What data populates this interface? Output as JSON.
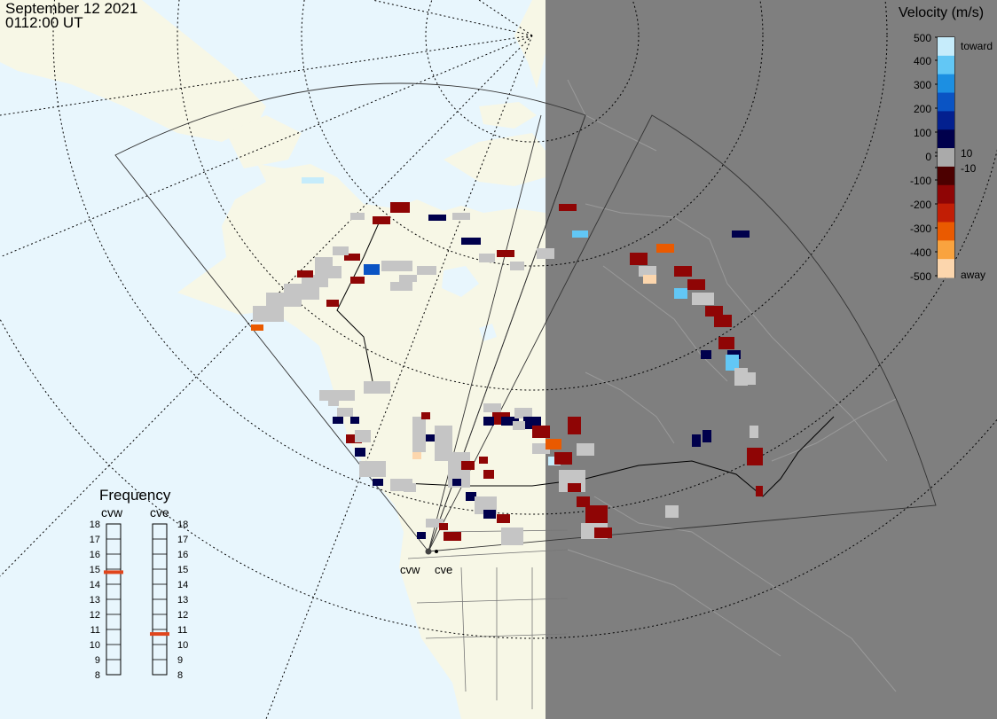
{
  "header": {
    "date": "September 12 2021",
    "time": "0112:00 UT"
  },
  "colorbar": {
    "title": "Velocity (m/s)",
    "ticks": [
      "500",
      "400",
      "300",
      "200",
      "100",
      "10",
      "0",
      "-10",
      "-100",
      "-200",
      "-300",
      "-400",
      "-500"
    ],
    "toward_label": "toward",
    "away_label": "away",
    "colors": [
      "#c6ecfb",
      "#62c7f5",
      "#1c8fe2",
      "#0a54c4",
      "#03208f",
      "#00004c",
      "#aaaaaa",
      "#4c0000",
      "#8f0505",
      "#c21e05",
      "#ea5a00",
      "#f9a33f",
      "#fcd6ad"
    ]
  },
  "frequency": {
    "title": "Frequency",
    "radars": [
      {
        "name": "cvw",
        "mhz": 14.8
      },
      {
        "name": "cve",
        "mhz": 10.7
      }
    ],
    "scale": [
      "18",
      "17",
      "16",
      "15",
      "14",
      "13",
      "12",
      "11",
      "10",
      "9",
      "8"
    ],
    "marker_color": "#e0451c"
  },
  "map": {
    "radar_labels": [
      "cvw",
      "cve"
    ],
    "land_color": "#f7f7e6",
    "ocean_color": "#e8f6fd",
    "night_color": "#7f7f7f",
    "no_scatter_color": "#c5c5c5"
  }
}
